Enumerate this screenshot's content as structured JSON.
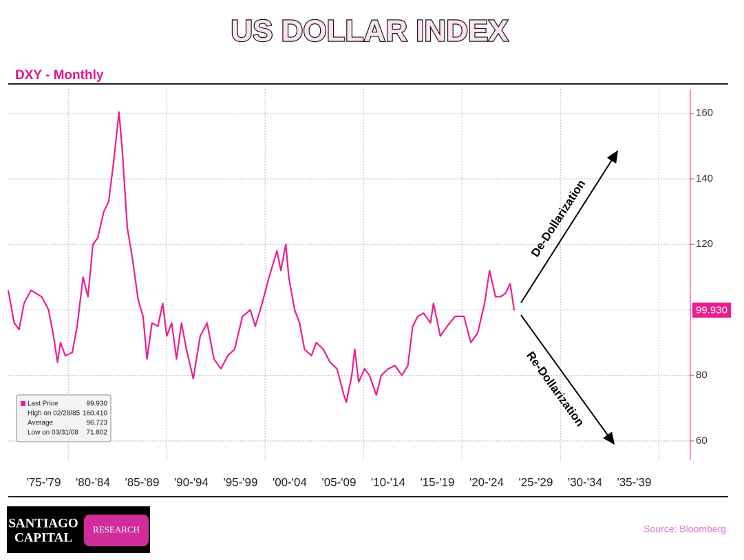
{
  "chart_data": {
    "type": "line",
    "title": "US DOLLAR INDEX",
    "subtitle": "DXY - Monthly",
    "source": "Source: Bloomberg",
    "logo": {
      "line1": "SANTIAGO",
      "line2": "CAPITAL",
      "tag": "RESEARCH"
    },
    "annotations": [
      "De-Dollarization",
      "Re-Dollarization"
    ],
    "info": [
      {
        "label": "Last Price",
        "value": "99.930"
      },
      {
        "label": "High on 02/28/85",
        "value": "160.410"
      },
      {
        "label": "Average",
        "value": "96.723"
      },
      {
        "label": "Low on 03/31/08",
        "value": "71.802"
      }
    ],
    "color": "#ec1e8e",
    "x": [
      1973.9,
      1974.5,
      1975.0,
      1975.5,
      1976.2,
      1977.3,
      1978.0,
      1978.5,
      1978.9,
      1979.2,
      1979.7,
      1980.4,
      1980.9,
      1981.5,
      1982.0,
      1982.5,
      1983.0,
      1983.6,
      1984.1,
      1984.6,
      1985.15,
      1985.5,
      1986.0,
      1986.5,
      1987.1,
      1987.6,
      1988.0,
      1988.5,
      1989.1,
      1989.6,
      1990.0,
      1990.5,
      1991.0,
      1991.5,
      1992.0,
      1992.7,
      1993.4,
      1994.1,
      1994.8,
      1995.5,
      1996.2,
      1996.9,
      1997.7,
      1998.5,
      1999.0,
      1999.7,
      2000.4,
      2000.9,
      2001.2,
      2001.6,
      2002.1,
      2002.4,
      2003.0,
      2003.5,
      2004.0,
      2004.7,
      2005.2,
      2005.9,
      2006.6,
      2007.3,
      2008.0,
      2008.25,
      2008.8,
      2009.1,
      2009.5,
      2010.1,
      2010.6,
      2011.3,
      2011.8,
      2012.5,
      2013.2,
      2013.9,
      2014.5,
      2015.0,
      2015.5,
      2016.1,
      2016.8,
      2017.1,
      2017.8,
      2018.5,
      2019.3,
      2020.2,
      2020.9,
      2021.6,
      2022.3,
      2022.8,
      2023.4,
      2023.9,
      2024.4,
      2024.9,
      2025.3
    ],
    "values": [
      106,
      96,
      94,
      102,
      106,
      104,
      100,
      92,
      84,
      90,
      86,
      87,
      95,
      110,
      104,
      120,
      122,
      130,
      133,
      145,
      160.41,
      148,
      125,
      116,
      103,
      98,
      85,
      96,
      95,
      102,
      92,
      96,
      85,
      96,
      88,
      79,
      92,
      96,
      85,
      82,
      86,
      88,
      98,
      100,
      95,
      102,
      110,
      115,
      118,
      112,
      120,
      110,
      100,
      96,
      88,
      86,
      90,
      88,
      84,
      82,
      74,
      71.802,
      80,
      88,
      78,
      82,
      80,
      74,
      80,
      82,
      83,
      80,
      83,
      95,
      98,
      99,
      96,
      102,
      92,
      95,
      98,
      98,
      90,
      93,
      102,
      112,
      104,
      104,
      105,
      108,
      99.93
    ],
    "xlim": [
      1973.9,
      2043.2
    ],
    "xticks": [
      {
        "value": 1977.5,
        "label": "'75-'79"
      },
      {
        "value": 1982.5,
        "label": "'80-'84"
      },
      {
        "value": 1987.5,
        "label": "'85-'89"
      },
      {
        "value": 1992.5,
        "label": "'90-'94"
      },
      {
        "value": 1997.5,
        "label": "'95-'99"
      },
      {
        "value": 2002.5,
        "label": "'00-'04"
      },
      {
        "value": 2007.5,
        "label": "'05-'09"
      },
      {
        "value": 2012.5,
        "label": "'10-'14"
      },
      {
        "value": 2017.5,
        "label": "'15-'19"
      },
      {
        "value": 2022.5,
        "label": "'20-'24"
      },
      {
        "value": 2027.5,
        "label": "'25-'29"
      },
      {
        "value": 2032.5,
        "label": "'30-'34"
      },
      {
        "value": 2037.5,
        "label": "'35-'39"
      }
    ],
    "xgrid": [
      1980,
      1990,
      2000,
      2010,
      2020,
      2030,
      2040
    ],
    "ylim": [
      54.3,
      167.3
    ],
    "yticks": [
      60,
      80,
      100,
      120,
      140,
      160
    ],
    "grid": true
  }
}
